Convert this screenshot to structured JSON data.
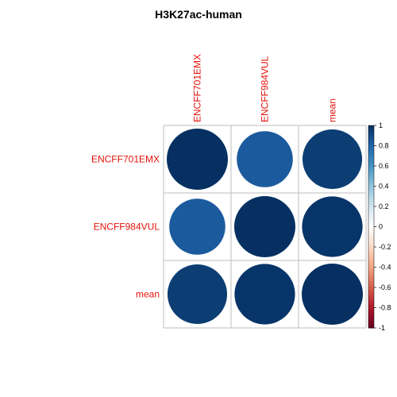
{
  "chart_data": {
    "type": "heatmap",
    "title": "H3K27ac-human",
    "row_labels": [
      "ENCFF701EMX",
      "ENCFF984VUL",
      "mean"
    ],
    "col_labels": [
      "ENCFF701EMX",
      "ENCFF984VUL",
      "mean"
    ],
    "matrix": [
      [
        1.0,
        0.84,
        0.95
      ],
      [
        0.84,
        1.0,
        0.98
      ],
      [
        0.95,
        0.98,
        1.0
      ]
    ],
    "value_range": [
      -1,
      1
    ],
    "colorbar_ticks": [
      "1",
      "0.8",
      "0.6",
      "0.4",
      "0.2",
      "0",
      "-0.2",
      "-0.4",
      "-0.6",
      "-0.8",
      "-1"
    ],
    "colormap": {
      "low": "#67001f",
      "mid": "#ffffff",
      "high": "#053061"
    },
    "label_color": "#e3120b",
    "grid": true,
    "legend": "right"
  }
}
